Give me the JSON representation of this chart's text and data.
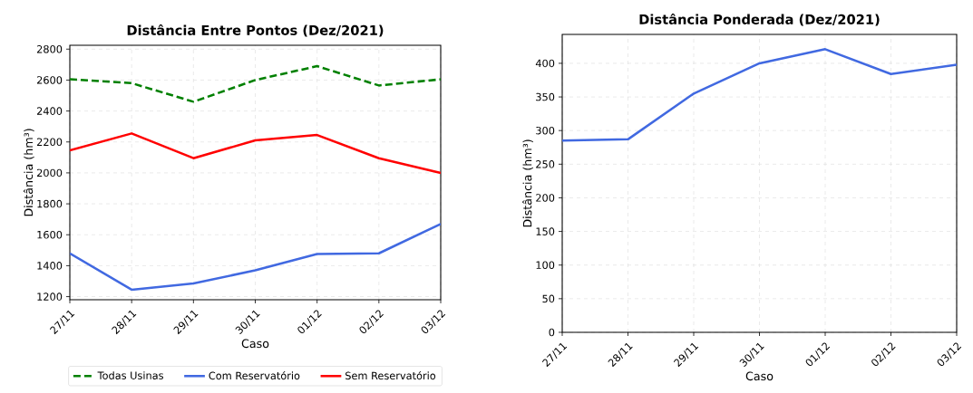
{
  "chart_data": [
    {
      "type": "line",
      "title": "Distância Entre Pontos (Dez/2021)",
      "xlabel": "Caso",
      "ylabel": "Distância (hm³)",
      "categories": [
        "27/11",
        "28/11",
        "29/11",
        "30/11",
        "01/12",
        "02/12",
        "03/12"
      ],
      "series": [
        {
          "name": "Todas Usinas",
          "color": "#008000",
          "line_style": "dashed",
          "values": [
            2605,
            2580,
            2460,
            2600,
            2690,
            2565,
            2605
          ]
        },
        {
          "name": "Com Reservatório",
          "color": "#4169e1",
          "line_style": "solid",
          "values": [
            1480,
            1245,
            1285,
            1370,
            1475,
            1480,
            1670
          ]
        },
        {
          "name": "Sem Reservatório",
          "color": "#ff0000",
          "line_style": "solid",
          "values": [
            2145,
            2255,
            2095,
            2210,
            2245,
            2095,
            2000
          ]
        }
      ],
      "ylim": [
        1180,
        2825
      ],
      "yticks": [
        1200,
        1400,
        1600,
        1800,
        2000,
        2200,
        2400,
        2600,
        2800
      ],
      "grid": true,
      "legend": "bottom"
    },
    {
      "type": "line",
      "title": "Distância Ponderada (Dez/2021)",
      "xlabel": "Caso",
      "ylabel": "Distância (hm³)",
      "categories": [
        "27/11",
        "28/11",
        "29/11",
        "30/11",
        "01/12",
        "02/12",
        "03/12"
      ],
      "series": [
        {
          "color": "#4169e1",
          "line_style": "solid",
          "values": [
            285,
            287,
            355,
            400,
            421,
            384,
            398
          ]
        }
      ],
      "ylim": [
        0,
        443
      ],
      "yticks": [
        0,
        50,
        100,
        150,
        200,
        250,
        300,
        350,
        400
      ],
      "grid": true
    }
  ]
}
